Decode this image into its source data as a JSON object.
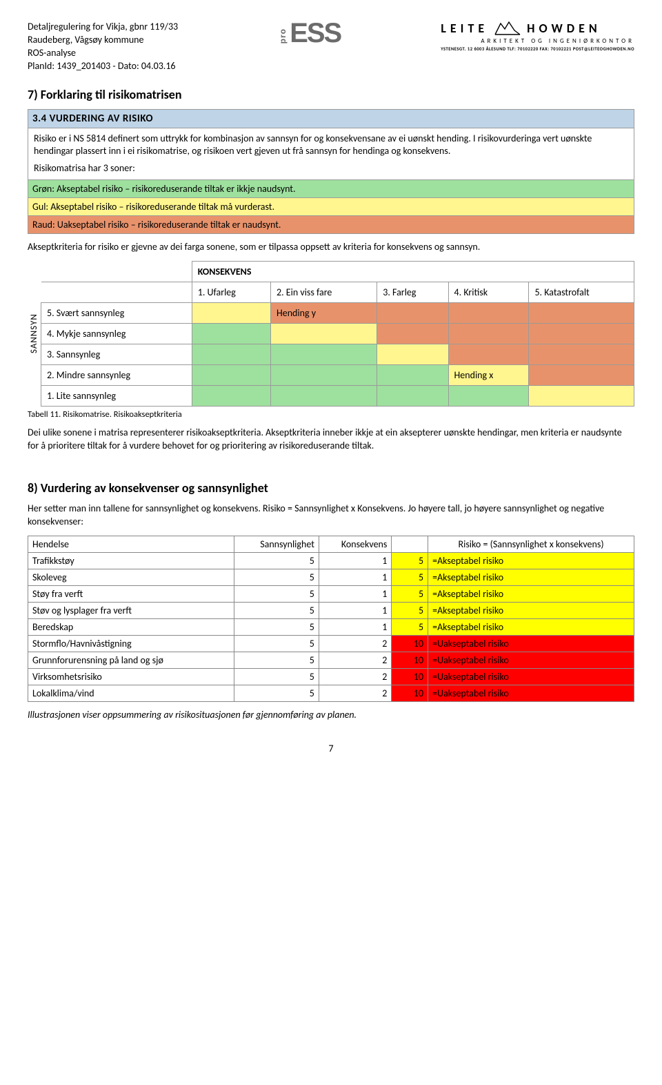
{
  "header": {
    "line1": "Detaljregulering for Vikja, gbnr 119/33",
    "line2": "Raudeberg, Vågsøy kommune",
    "line3": "ROS-analyse",
    "line4": "PlanId: 1439_201403 -  Dato: 04.03.16",
    "proess_pro": "pro",
    "proess_ess": "ESS",
    "lh_name_left": "LEITE",
    "lh_name_right": "HOWDEN",
    "lh_sub": "ARKITEKT OG INGENIØRKONTOR",
    "lh_addr": "YSTENESGT. 12  6003 ÅLESUND  TLF: 70102220 FAX: 70102221  POST@LEITEOGHOWDEN.NO"
  },
  "section7_title": "7) Forklaring til risikomatrisen",
  "box": {
    "header": "3.4 VURDERING AV RISIKO",
    "para1": "Risiko er i NS 5814 definert som uttrykk for kombinasjon av sannsyn for og konsekvensane av ei uønskt hending. I risikovurderinga vert uønskte hendingar plassert inn i ei risikomatrise, og risikoen vert gjeven ut frå sannsyn for hendinga og konsekvens.",
    "zones_intro": "Risikomatrisa har 3 soner:",
    "zone_green": "Grøn: Akseptabel risiko – risikoreduserande tiltak er ikkje naudsynt.",
    "zone_yellow": "Gul: Akseptabel risiko – risikoreduserande tiltak må vurderast.",
    "zone_red": "Raud: Uakseptabel risiko – risikoreduserande tiltak er naudsynt."
  },
  "para_after_box": "Akseptkriteria for risiko er gjevne av dei farga sonene, som er tilpassa oppsett av kriteria for konsekvens og sannsyn.",
  "matrix": {
    "vert_label": "SANNSYN",
    "kons_header": "KONSEKVENS",
    "cols": [
      "1. Ufarleg",
      "2. Ein viss fare",
      "3. Farleg",
      "4. Kritisk",
      "5. Katastrofalt"
    ],
    "rows": [
      {
        "label": "5. Svært sannsynleg",
        "cells": [
          "",
          "Hending y",
          "",
          "",
          ""
        ],
        "classes": [
          "cell-yellow",
          "cell-orange",
          "cell-orange",
          "cell-orange",
          "cell-orange"
        ]
      },
      {
        "label": "4. Mykje sannsynleg",
        "cells": [
          "",
          "",
          "",
          "",
          ""
        ],
        "classes": [
          "cell-green",
          "cell-yellow",
          "cell-orange",
          "cell-orange",
          "cell-orange"
        ]
      },
      {
        "label": "3. Sannsynleg",
        "cells": [
          "",
          "",
          "",
          "",
          ""
        ],
        "classes": [
          "cell-green",
          "cell-green",
          "cell-yellow",
          "cell-orange",
          "cell-orange"
        ]
      },
      {
        "label": "2. Mindre sannsynleg",
        "cells": [
          "",
          "",
          "",
          "Hending x",
          ""
        ],
        "classes": [
          "cell-green",
          "cell-green",
          "cell-green",
          "cell-yellow",
          "cell-orange"
        ]
      },
      {
        "label": "1. Lite sannsynleg",
        "cells": [
          "",
          "",
          "",
          "",
          ""
        ],
        "classes": [
          "cell-green",
          "cell-green",
          "cell-green",
          "cell-green",
          "cell-yellow"
        ]
      }
    ],
    "caption": "Tabell 11. Risikomatrise. Risikoakseptkriteria",
    "para_below": "Dei ulike sonene i matrisa representerer risikoakseptkriteria. Akseptkriteria inneber ikkje at ein aksepterer uønskte hendingar, men kriteria er naudsynte for å prioritere tiltak for å vurdere behovet for og prioritering av risikoreduserande tiltak."
  },
  "section8_title": "8) Vurdering av konsekvenser og sannsynlighet",
  "section8_para": "Her setter man inn tallene for sannsynlighet og konsekvens. Risiko = Sannsynlighet x Konsekvens. Jo høyere tall, jo høyere sannsynlighet og negative konsekvenser:",
  "risk_table": {
    "cols": [
      "Hendelse",
      "Sannsynlighet",
      "Konsekvens",
      "",
      "Risiko = (Sannsynlighet x konsekvens)"
    ],
    "rows": [
      {
        "event": "Trafikkstøy",
        "s": "5",
        "k": "1",
        "r": "5",
        "label": "=Akseptabel risiko",
        "class": "r-yellow"
      },
      {
        "event": "Skoleveg",
        "s": "5",
        "k": "1",
        "r": "5",
        "label": "=Akseptabel risiko",
        "class": "r-yellow"
      },
      {
        "event": "Støy fra verft",
        "s": "5",
        "k": "1",
        "r": "5",
        "label": "=Akseptabel risiko",
        "class": "r-yellow"
      },
      {
        "event": "Støv og lysplager fra verft",
        "s": "5",
        "k": "1",
        "r": "5",
        "label": "=Akseptabel risiko",
        "class": "r-yellow"
      },
      {
        "event": "Beredskap",
        "s": "5",
        "k": "1",
        "r": "5",
        "label": "=Akseptabel risiko",
        "class": "r-yellow"
      },
      {
        "event": "Stormflo/Havnivåstigning",
        "s": "5",
        "k": "2",
        "r": "10",
        "label": "=Uakseptabel risiko",
        "class": "r-red"
      },
      {
        "event": "Grunnforurensning på land og sjø",
        "s": "5",
        "k": "2",
        "r": "10",
        "label": "=Uakseptabel risiko",
        "class": "r-red"
      },
      {
        "event": "Virksomhetsrisiko",
        "s": "5",
        "k": "2",
        "r": "10",
        "label": "=Uakseptabel risiko",
        "class": "r-red"
      },
      {
        "event": "Lokalklima/vind",
        "s": "5",
        "k": "2",
        "r": "10",
        "label": "=Uakseptabel risiko",
        "class": "r-red"
      }
    ]
  },
  "footer_caption": "Illustrasjonen viser oppsummering av risikosituasjonen før gjennomføring av planen.",
  "page_number": "7"
}
